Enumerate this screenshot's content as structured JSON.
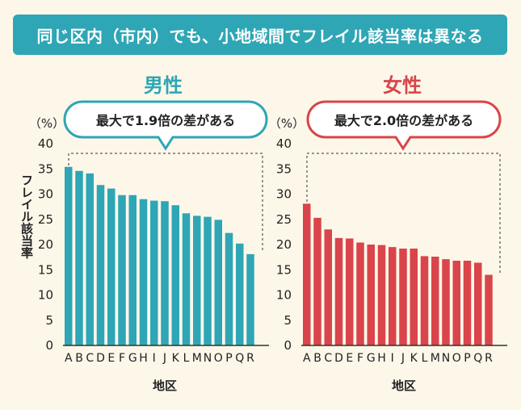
{
  "title": "同じ区内（市内）でも、小地域間でフレイル該当率は異なる",
  "colors": {
    "banner": "#2ea6b5",
    "male": "#2ea6b5",
    "female": "#d9454a",
    "background": "#fdf7ea"
  },
  "chart_data": [
    {
      "type": "bar",
      "title": "男性",
      "callout": "最大で1.9倍の差がある",
      "unit_label": "（%）",
      "ylabel": "フレイル該当率",
      "xlabel": "地区",
      "ylim": [
        0,
        40
      ],
      "yticks": [
        0,
        5,
        10,
        15,
        20,
        25,
        30,
        35,
        40
      ],
      "categories": [
        "A",
        "B",
        "C",
        "D",
        "E",
        "F",
        "G",
        "H",
        "I",
        "J",
        "K",
        "L",
        "M",
        "N",
        "O",
        "P",
        "Q",
        "R"
      ],
      "values": [
        35.4,
        34.6,
        34.1,
        31.8,
        31.1,
        29.8,
        29.8,
        29.0,
        28.7,
        28.6,
        27.8,
        26.2,
        25.7,
        25.5,
        24.9,
        22.3,
        20.2,
        18.1
      ]
    },
    {
      "type": "bar",
      "title": "女性",
      "callout": "最大で2.0倍の差がある",
      "unit_label": "（%）",
      "xlabel": "地区",
      "ylim": [
        0,
        40
      ],
      "yticks": [
        0,
        5,
        10,
        15,
        20,
        25,
        30,
        35,
        40
      ],
      "categories": [
        "A",
        "B",
        "C",
        "D",
        "E",
        "F",
        "G",
        "H",
        "I",
        "J",
        "K",
        "L",
        "M",
        "N",
        "O",
        "P",
        "Q",
        "R"
      ],
      "values": [
        28.1,
        25.3,
        23.0,
        21.3,
        21.2,
        20.4,
        20.0,
        19.9,
        19.5,
        19.2,
        19.2,
        17.7,
        17.6,
        17.1,
        16.8,
        16.8,
        16.4,
        14.0
      ]
    }
  ]
}
